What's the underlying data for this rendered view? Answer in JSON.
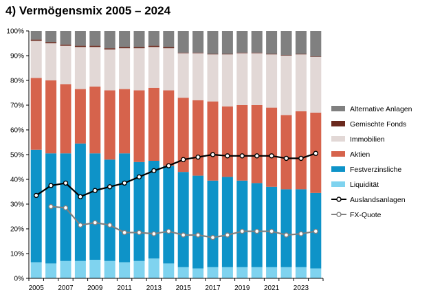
{
  "chart_data": {
    "type": "bar",
    "title": "4)   Vermögensmix 2005 – 2024",
    "years": [
      2005,
      2006,
      2007,
      2008,
      2009,
      2010,
      2011,
      2012,
      2013,
      2014,
      2015,
      2016,
      2017,
      2018,
      2019,
      2020,
      2021,
      2022,
      2023,
      2024
    ],
    "x_tick_labels": [
      "2005",
      "2007",
      "2009",
      "2011",
      "2013",
      "2015",
      "2017",
      "2019",
      "2021",
      "2023"
    ],
    "y_tick_labels": [
      "0%",
      "10%",
      "20%",
      "30%",
      "40%",
      "50%",
      "60%",
      "70%",
      "80%",
      "90%",
      "100%"
    ],
    "ylim": [
      0,
      100
    ],
    "stack_series": [
      {
        "name": "Liquidität",
        "color": "#7fd3ef",
        "values": [
          6.5,
          6,
          7,
          7,
          7.5,
          7,
          6.5,
          7,
          8,
          6,
          4.5,
          4,
          4.5,
          4.5,
          4.5,
          4.5,
          4.5,
          4.5,
          4.5,
          4
        ]
      },
      {
        "name": "Festverzinsliche",
        "color": "#0e93c8",
        "values": [
          45.5,
          44.5,
          43.5,
          47.5,
          43,
          41,
          44,
          40,
          39.5,
          39.5,
          38.5,
          37.5,
          35,
          36.5,
          35,
          34,
          32.5,
          31.5,
          31.5,
          30.5
        ]
      },
      {
        "name": "Aktien",
        "color": "#d6634c",
        "values": [
          29,
          29.5,
          28,
          22,
          27,
          28,
          26,
          29,
          29.5,
          30.5,
          30,
          30.5,
          32,
          28.5,
          30.5,
          31.5,
          32,
          30,
          31.5,
          32.5
        ]
      },
      {
        "name": "Immobilien",
        "color": "#e2d8d6",
        "values": [
          15,
          15,
          15.5,
          17,
          16,
          16.5,
          16.5,
          17,
          16.5,
          17,
          18,
          19,
          19,
          21,
          21,
          21,
          21.5,
          24,
          23,
          22.5
        ]
      },
      {
        "name": "Gemischte Fonds",
        "color": "#6b2a1e",
        "values": [
          0.5,
          0.5,
          0.5,
          0.5,
          0.5,
          0.5,
          0.5,
          0.5,
          0.5,
          0.5,
          0.2,
          0.2,
          0.2,
          0.2,
          0.2,
          0.2,
          0.2,
          0.2,
          0.2,
          0.2
        ]
      },
      {
        "name": "Alternative Anlagen",
        "color": "#808080",
        "values": [
          3.5,
          4.5,
          5.5,
          6,
          6,
          7,
          6.5,
          6.5,
          6,
          6.5,
          8.8,
          8.8,
          9.3,
          9.3,
          8.8,
          8.8,
          9.3,
          9.8,
          9.3,
          10.3
        ]
      }
    ],
    "line_series": [
      {
        "name": "Auslandsanlagen",
        "color": "#000000",
        "values": [
          33.5,
          37.5,
          38.5,
          33,
          35.5,
          37,
          38.5,
          41,
          43.5,
          45.5,
          48,
          49,
          50,
          49.5,
          49.5,
          49.5,
          49.5,
          48.5,
          48.5,
          50.5
        ]
      },
      {
        "name": "FX-Quote",
        "color": "#808080",
        "values": [
          null,
          29,
          28.5,
          21.5,
          22.5,
          21.5,
          18.5,
          18.5,
          18,
          19,
          17.5,
          17.5,
          16.5,
          17.5,
          19,
          19,
          19,
          17.5,
          18,
          19
        ]
      }
    ],
    "legend_order": [
      "Alternative Anlagen",
      "Gemischte Fonds",
      "Immobilien",
      "Aktien",
      "Festverzinsliche",
      "Liquidität",
      "Auslandsanlagen",
      "FX-Quote"
    ],
    "legend_position": "right",
    "grid": false
  }
}
